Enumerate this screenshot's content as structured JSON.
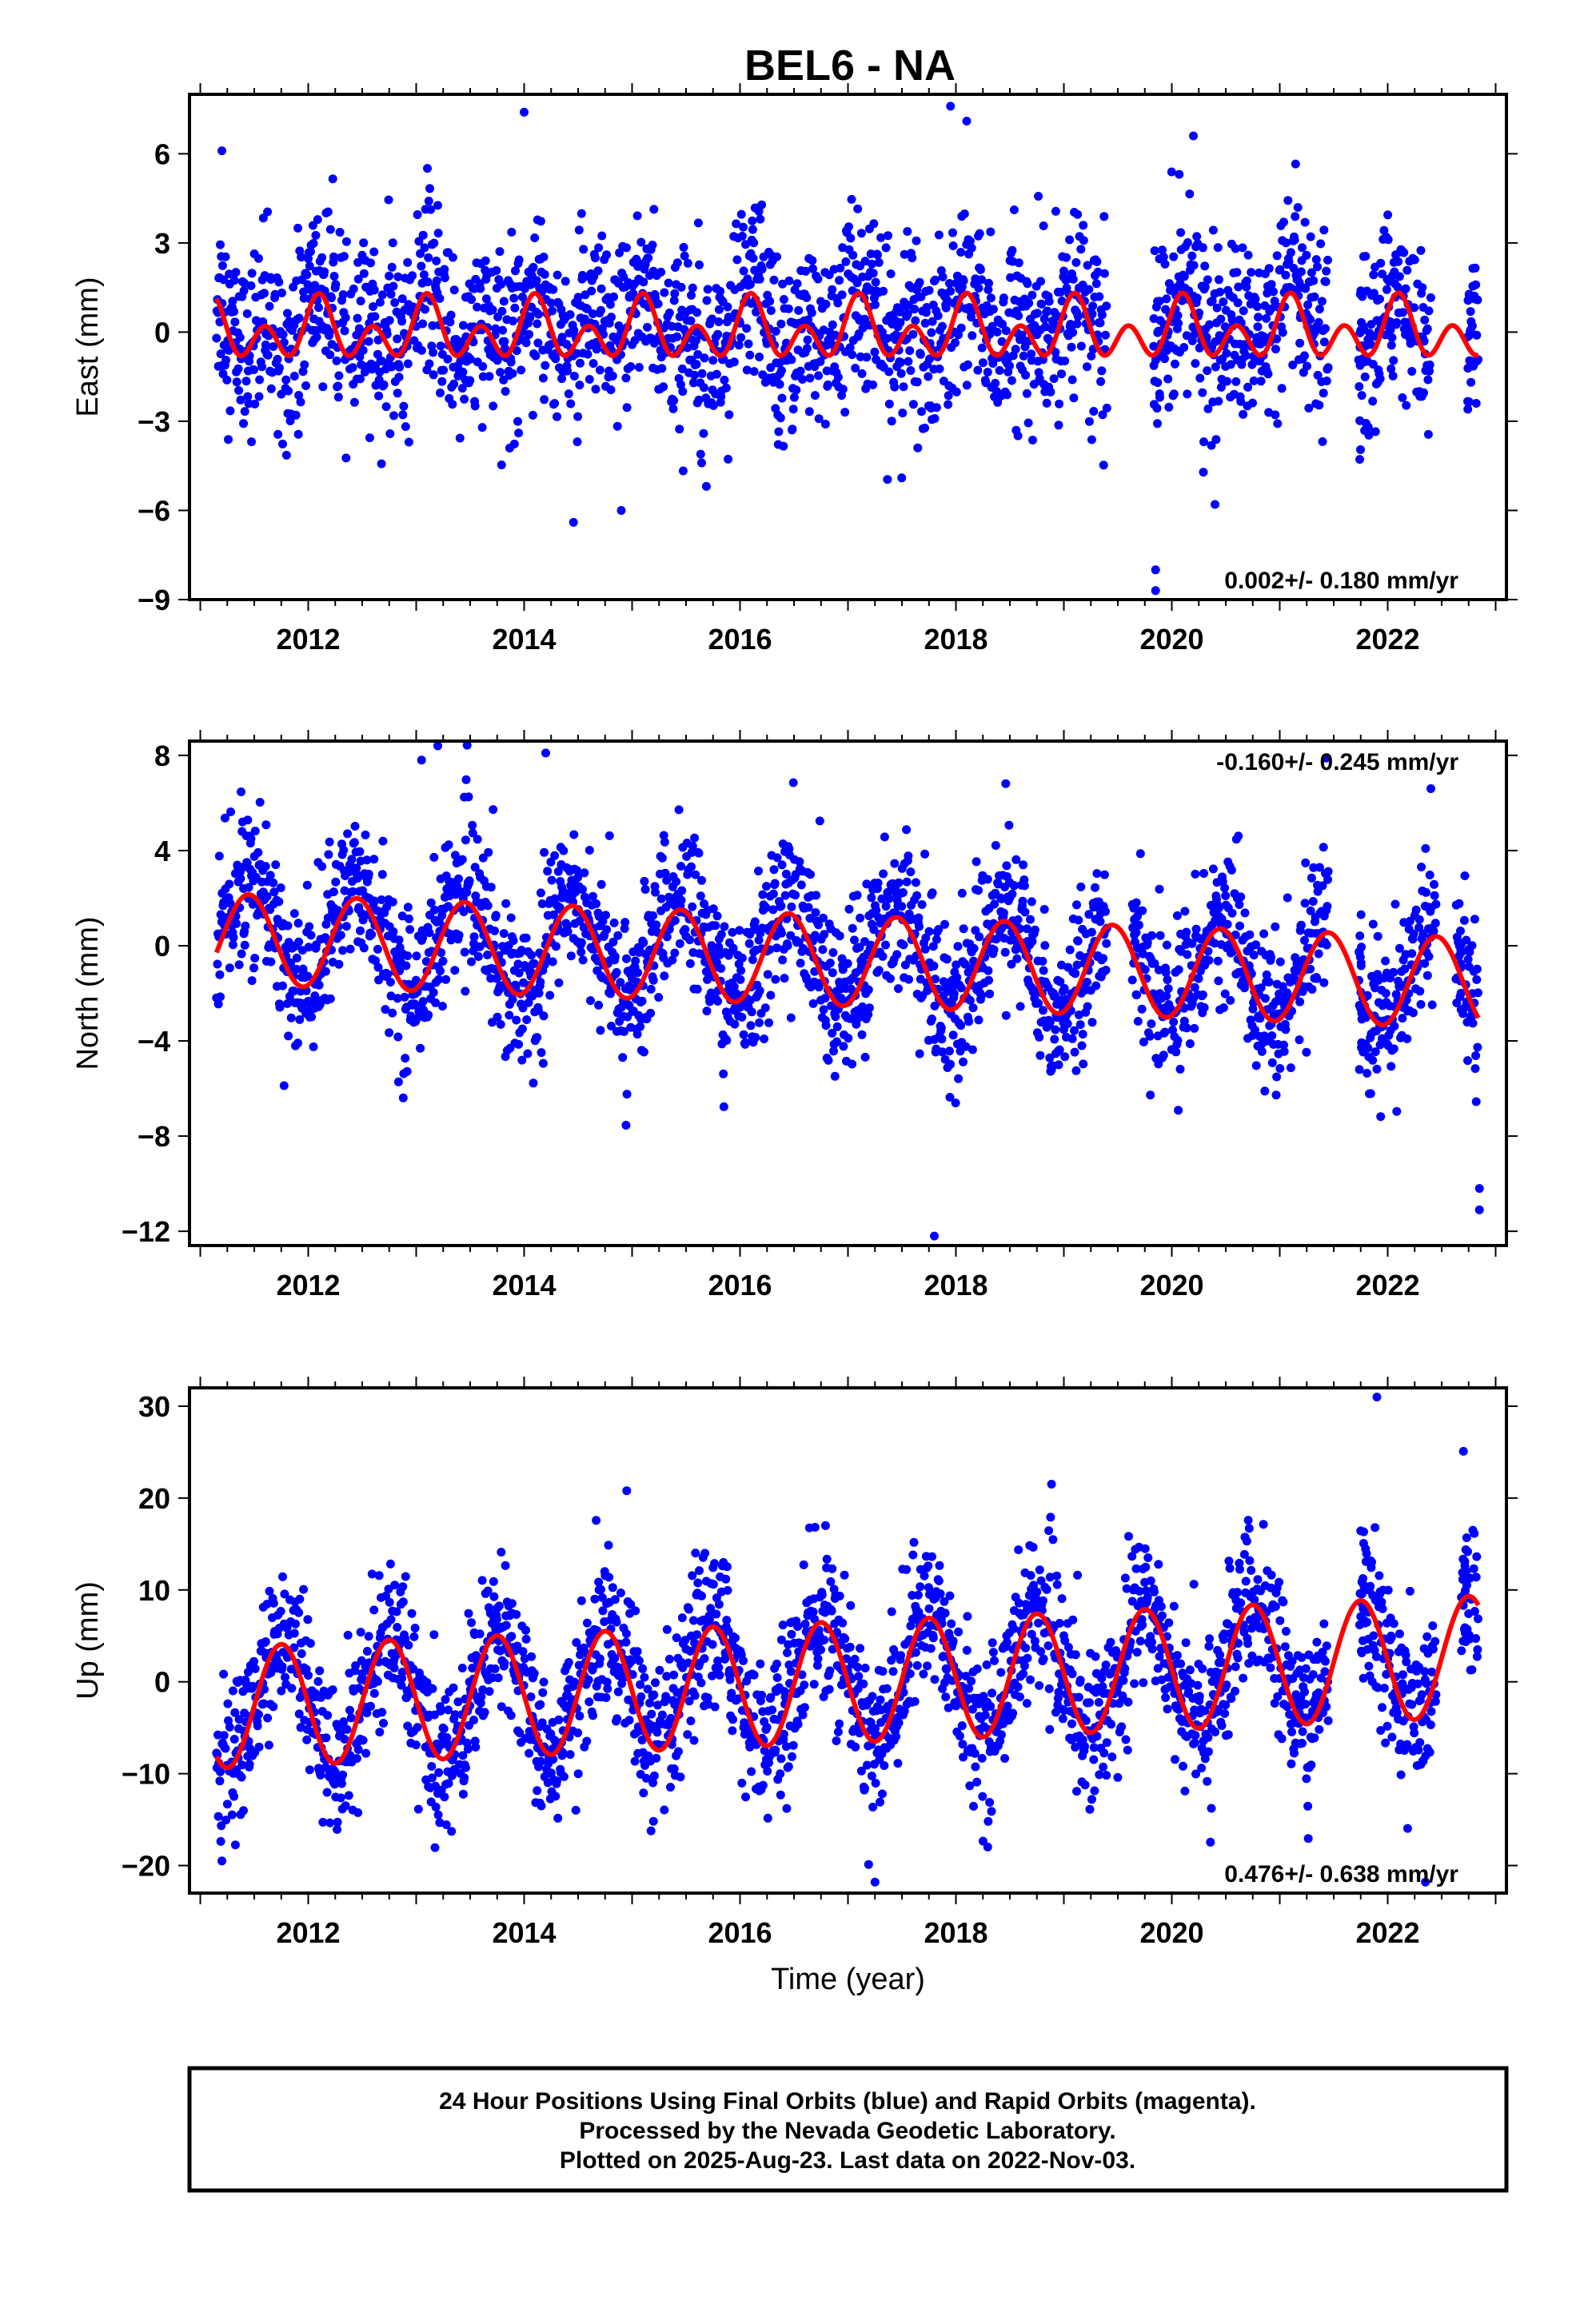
{
  "title": "BEL6 - NA",
  "footer": {
    "line1": "24 Hour Positions Using Final Orbits (blue) and Rapid Orbits (magenta).",
    "line2": "Processed by the Nevada Geodetic Laboratory.",
    "line3": "Plotted on 2025-Aug-23. Last data on 2022-Nov-03."
  },
  "colors": {
    "final_orbits": "#0000ff",
    "fit": "#ff0000",
    "axis": "#000000"
  },
  "chart_data": [
    {
      "type": "scatter",
      "title": "BEL6 - NA",
      "ylabel": "East (mm)",
      "xlabel": "",
      "xlim": [
        2010.9,
        2023.1
      ],
      "ylim": [
        -9,
        8
      ],
      "x_ticks": [
        2012,
        2014,
        2016,
        2018,
        2020,
        2022
      ],
      "y_ticks": [
        -9,
        -6,
        -3,
        0,
        3,
        6
      ],
      "y_tick_labels": [
        "−9",
        "−6",
        "−3",
        "0",
        "3",
        "6"
      ],
      "rate_text": "0.002+/- 0.180 mm/yr",
      "rate_position": "bottom-right",
      "grid": false,
      "series": [
        {
          "kind": "daily_positions",
          "start": 2011.15,
          "end": 2022.84,
          "daily_scatter_std": 1.5,
          "annual_amplitude": 0.7,
          "annual_phase_peak": 2011.1,
          "semiannual_amplitude": 0.6,
          "offset": 0.2,
          "gaps": [
            [
              2019.4,
              2019.85
            ],
            [
              2021.45,
              2021.75
            ],
            [
              2022.4,
              2022.75
            ]
          ],
          "outliers": [
            [
              2011.2,
              6.1
            ],
            [
              2014.0,
              7.4
            ],
            [
              2017.95,
              7.6
            ],
            [
              2018.1,
              7.1
            ],
            [
              2020.2,
              6.6
            ],
            [
              2014.9,
              -6.0
            ],
            [
              2020.4,
              -5.8
            ],
            [
              2019.85,
              -8.0
            ],
            [
              2019.85,
              -8.7
            ]
          ]
        },
        {
          "kind": "seasonal_fit",
          "start": 2011.15,
          "end": 2022.84,
          "trend": 0.002,
          "offset": 0.0,
          "annual_amplitude": 0.55,
          "annual_phase_peak": 2011.1,
          "semiannual_amplitude": 0.75,
          "semiannual_phase_peak": 2011.1
        }
      ]
    },
    {
      "type": "scatter",
      "title": "",
      "ylabel": "North (mm)",
      "xlabel": "",
      "xlim": [
        2010.9,
        2023.1
      ],
      "ylim": [
        -12.6,
        8.6
      ],
      "x_ticks": [
        2012,
        2014,
        2016,
        2018,
        2020,
        2022
      ],
      "y_ticks": [
        -12,
        -8,
        -4,
        0,
        4,
        8
      ],
      "y_tick_labels": [
        "−12",
        "−8",
        "−4",
        "0",
        "4",
        "8"
      ],
      "rate_text": "-0.160+/- 0.245 mm/yr",
      "rate_position": "top-right",
      "grid": false,
      "series": [
        {
          "kind": "daily_positions",
          "start": 2011.15,
          "end": 2022.84,
          "daily_scatter_std": 1.6,
          "annual_amplitude": 2.1,
          "annual_phase_peak": 2012.45,
          "semiannual_amplitude": 0.0,
          "offset": 0.6,
          "trend": -0.16,
          "gaps": [
            [
              2019.4,
              2019.65
            ],
            [
              2021.45,
              2021.75
            ],
            [
              2022.45,
              2022.65
            ]
          ],
          "outliers": [
            [
              2013.2,
              8.4
            ],
            [
              2013.05,
              7.8
            ],
            [
              2014.2,
              8.1
            ],
            [
              2017.8,
              -12.2
            ],
            [
              2022.85,
              -11.1
            ],
            [
              2022.85,
              -10.2
            ],
            [
              2022.4,
              6.6
            ]
          ]
        },
        {
          "kind": "seasonal_fit",
          "start": 2011.15,
          "end": 2022.84,
          "trend": -0.16,
          "offset": 0.3,
          "trend_ref": 2011.15,
          "annual_amplitude": 1.9,
          "annual_phase_peak": 2012.45,
          "semiannual_amplitude": 0.0,
          "semiannual_phase_peak": 2011.0
        }
      ]
    },
    {
      "type": "scatter",
      "title": "",
      "ylabel": "Up (mm)",
      "xlabel": "Time (year)",
      "xlim": [
        2010.9,
        2023.1
      ],
      "ylim": [
        -23,
        32
      ],
      "x_ticks": [
        2012,
        2014,
        2016,
        2018,
        2020,
        2022
      ],
      "y_ticks": [
        -20,
        -10,
        0,
        10,
        20,
        30
      ],
      "y_tick_labels": [
        "−20",
        "−10",
        "0",
        "10",
        "20",
        "30"
      ],
      "rate_text": "0.476+/- 0.638 mm/yr",
      "rate_position": "bottom-right",
      "grid": false,
      "series": [
        {
          "kind": "daily_positions",
          "start": 2011.15,
          "end": 2022.84,
          "daily_scatter_std": 4.2,
          "annual_amplitude": 6.5,
          "annual_phase_peak": 2011.75,
          "semiannual_amplitude": 0.0,
          "offset": -2.5,
          "trend": 0.476,
          "gaps": [
            [
              2021.45,
              2021.75
            ],
            [
              2022.45,
              2022.7
            ]
          ],
          "outliers": [
            [
              2014.95,
              20.8
            ],
            [
              2021.9,
              31.0
            ],
            [
              2017.25,
              -21.8
            ],
            [
              2022.35,
              -21.8
            ],
            [
              2011.2,
              -19.5
            ]
          ]
        },
        {
          "kind": "seasonal_fit",
          "start": 2011.15,
          "end": 2022.84,
          "trend": 0.476,
          "offset": -2.8,
          "trend_ref": 2011.15,
          "annual_amplitude": 6.6,
          "annual_phase_peak": 2011.75,
          "semiannual_amplitude": 0.0,
          "semiannual_phase_peak": 2011.0
        }
      ]
    }
  ]
}
